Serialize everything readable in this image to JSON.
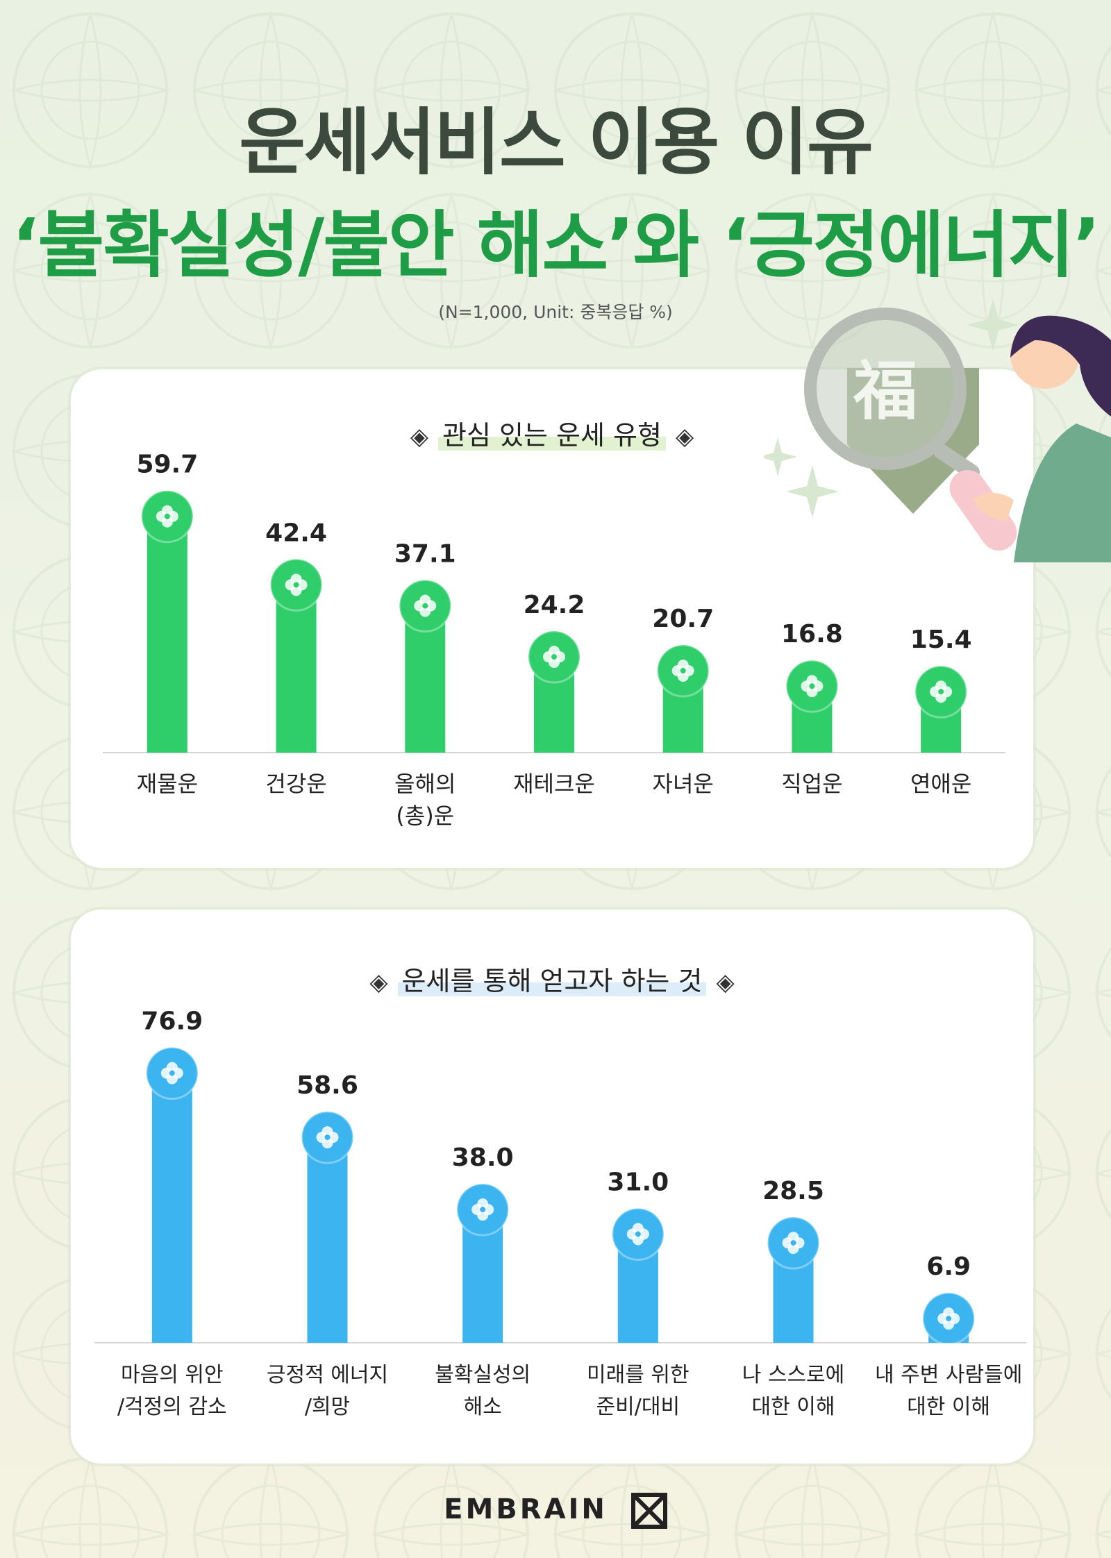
{
  "header": {
    "title_line1": "운세서비스 이용 이유",
    "title_line2": "‘불확실성/불안 해소’와 ‘긍정에너지’",
    "note": "(N=1,000, Unit: 중복응답 %)"
  },
  "illustration": {
    "lens_char": "福"
  },
  "colors": {
    "green_bar": "#2fce6a",
    "blue_bar": "#3cb4f0",
    "title_green": "#1e9c46",
    "title_dark": "#3b4a3c"
  },
  "chart_data": [
    {
      "type": "bar",
      "title": "관심 있는 운세 유형",
      "categories": [
        "재물운",
        "건강운",
        "올해의\n(총)운",
        "재테크운",
        "자녀운",
        "직업운",
        "연애운"
      ],
      "values": [
        59.7,
        42.4,
        37.1,
        24.2,
        20.7,
        16.8,
        15.4
      ],
      "value_labels": [
        "59.7",
        "42.4",
        "37.1",
        "24.2",
        "20.7",
        "16.8",
        "15.4"
      ],
      "color": "#2fce6a"
    },
    {
      "type": "bar",
      "title": "운세를 통해 얻고자 하는 것",
      "categories": [
        "마음의 위안\n/걱정의 감소",
        "긍정적 에너지\n/희망",
        "불확실성의\n해소",
        "미래를 위한\n준비/대비",
        "나 스스로에\n대한 이해",
        "내 주변 사람들에\n대한 이해"
      ],
      "values": [
        76.9,
        58.6,
        38.0,
        31.0,
        28.5,
        6.9
      ],
      "value_labels": [
        "76.9",
        "58.6",
        "38.0",
        "31.0",
        "28.5",
        "6.9"
      ],
      "color": "#3cb4f0"
    }
  ],
  "footer": {
    "logo_text": "EMBRAIN",
    "logo_icon": "embrain-logo-icon"
  }
}
